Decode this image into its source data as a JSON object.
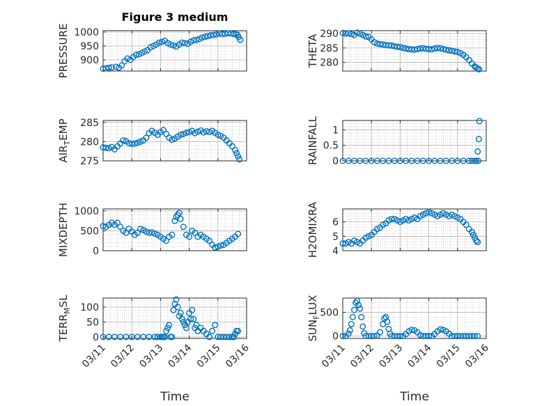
{
  "figure": {
    "title": "Figure 3 medium",
    "xlabel": "Time"
  },
  "colors": {
    "marker": "#0072BD",
    "axis": "#262626",
    "grid": "#b0b0b0"
  },
  "x_ticks": [
    "03/11",
    "03/12",
    "03/13",
    "03/14",
    "03/15",
    "03/16"
  ],
  "chart_data": [
    {
      "type": "scatter",
      "ylabel": "PRESSURE",
      "ylim": [
        860,
        1005
      ],
      "yticks": [
        900,
        950,
        1000
      ],
      "xlim": [
        0,
        5
      ],
      "grid": true,
      "x": [
        0,
        0.1,
        0.2,
        0.3,
        0.45,
        0.55,
        0.65,
        0.75,
        0.85,
        0.95,
        1.05,
        1.15,
        1.25,
        1.35,
        1.45,
        1.55,
        1.65,
        1.75,
        1.85,
        1.95,
        2.05,
        2.15,
        2.25,
        2.35,
        2.45,
        2.55,
        2.65,
        2.75,
        2.85,
        2.95,
        3.05,
        3.15,
        3.25,
        3.35,
        3.45,
        3.55,
        3.65,
        3.75,
        3.85,
        3.95,
        4.05,
        4.15,
        4.25,
        4.35,
        4.45,
        4.55,
        4.62,
        4.68,
        4.72,
        4.78
      ],
      "y": [
        868,
        870,
        872,
        873,
        875,
        872,
        880,
        895,
        905,
        900,
        910,
        918,
        920,
        925,
        930,
        935,
        945,
        950,
        955,
        962,
        965,
        968,
        960,
        955,
        952,
        948,
        955,
        962,
        960,
        958,
        965,
        970,
        972,
        975,
        980,
        983,
        985,
        988,
        990,
        992,
        995,
        993,
        994,
        996,
        995,
        993,
        992,
        990,
        982,
        972
      ]
    },
    {
      "type": "scatter",
      "ylabel": "THETA",
      "ylim": [
        277,
        291
      ],
      "yticks": [
        280,
        285,
        290
      ],
      "xlim": [
        0,
        5
      ],
      "grid": true,
      "x": [
        0,
        0.1,
        0.2,
        0.3,
        0.4,
        0.5,
        0.6,
        0.7,
        0.8,
        0.9,
        1.0,
        1.1,
        1.2,
        1.3,
        1.4,
        1.5,
        1.6,
        1.7,
        1.8,
        1.9,
        2.0,
        2.1,
        2.2,
        2.3,
        2.4,
        2.5,
        2.6,
        2.7,
        2.8,
        2.9,
        3.0,
        3.1,
        3.2,
        3.3,
        3.4,
        3.5,
        3.6,
        3.7,
        3.8,
        3.9,
        4.0,
        4.1,
        4.2,
        4.3,
        4.4,
        4.5,
        4.6,
        4.65,
        4.7,
        4.75
      ],
      "y": [
        290.2,
        290,
        290.1,
        289.8,
        289.5,
        290.3,
        290,
        289.5,
        289,
        288.8,
        288,
        287,
        286.5,
        286.3,
        286.2,
        286,
        285.9,
        285.8,
        285.6,
        285.4,
        285.3,
        285,
        284.8,
        284.6,
        284.5,
        284.4,
        284.6,
        284.8,
        284.9,
        284.7,
        284.6,
        284.5,
        284.8,
        285,
        284.9,
        284.6,
        284.4,
        284.2,
        284,
        283.8,
        283.6,
        283.2,
        282.6,
        281.8,
        280.8,
        279.6,
        278.6,
        278.2,
        277.8,
        277.6
      ]
    },
    {
      "type": "scatter",
      "ylabel": "AIR_TEMP",
      "ylim": [
        275,
        285.5
      ],
      "yticks": [
        275,
        280,
        285
      ],
      "xlim": [
        0,
        5
      ],
      "grid": true,
      "x": [
        0,
        0.1,
        0.2,
        0.3,
        0.4,
        0.5,
        0.6,
        0.7,
        0.8,
        0.9,
        1.0,
        1.1,
        1.2,
        1.3,
        1.4,
        1.5,
        1.6,
        1.7,
        1.8,
        1.9,
        2.0,
        2.1,
        2.2,
        2.3,
        2.4,
        2.5,
        2.6,
        2.7,
        2.8,
        2.9,
        3.0,
        3.1,
        3.2,
        3.3,
        3.4,
        3.5,
        3.6,
        3.7,
        3.8,
        3.9,
        4.0,
        4.1,
        4.2,
        4.3,
        4.4,
        4.5,
        4.6,
        4.65,
        4.7,
        4.75
      ],
      "y": [
        278.5,
        278.4,
        278.3,
        278.6,
        278,
        278.8,
        279.5,
        280.3,
        280.1,
        279.6,
        279.4,
        279.5,
        279.7,
        280,
        280.3,
        281,
        282.2,
        282.8,
        282.3,
        281.8,
        282.5,
        283,
        282,
        281,
        280.5,
        280.8,
        281.3,
        281.8,
        282,
        282.3,
        282.5,
        282.8,
        282.2,
        282.6,
        282.9,
        282.4,
        282.7,
        282.5,
        282.8,
        282.3,
        281.8,
        281.5,
        281,
        280.3,
        279.6,
        278.8,
        277.8,
        277,
        276.2,
        275.4
      ]
    },
    {
      "type": "scatter",
      "ylabel": "RAINFALL",
      "ylim": [
        0,
        1.3
      ],
      "yticks": [
        0,
        0.5,
        1
      ],
      "xlim": [
        0,
        5
      ],
      "grid": true,
      "x": [
        0,
        0.2,
        0.4,
        0.6,
        0.8,
        1.0,
        1.2,
        1.4,
        1.6,
        1.8,
        2.0,
        2.2,
        2.4,
        2.6,
        2.8,
        3.0,
        3.2,
        3.4,
        3.6,
        3.8,
        4.0,
        4.2,
        4.4,
        4.5,
        4.6,
        4.65,
        4.7,
        4.72,
        4.74,
        4.76
      ],
      "y": [
        0,
        0,
        0,
        0,
        0,
        0,
        0,
        0,
        0,
        0,
        0,
        0,
        0,
        0,
        0,
        0,
        0,
        0,
        0,
        0,
        0,
        0,
        0,
        0,
        0,
        0,
        0.3,
        0,
        0.7,
        1.28
      ]
    },
    {
      "type": "scatter",
      "ylabel": "MIXDEPTH",
      "ylim": [
        0,
        1050
      ],
      "yticks": [
        0,
        500,
        1000
      ],
      "xlim": [
        0,
        5
      ],
      "grid": true,
      "x": [
        0,
        0.1,
        0.2,
        0.3,
        0.4,
        0.5,
        0.6,
        0.7,
        0.8,
        0.9,
        1.0,
        1.1,
        1.2,
        1.3,
        1.4,
        1.5,
        1.6,
        1.7,
        1.8,
        1.9,
        2.0,
        2.1,
        2.2,
        2.3,
        2.4,
        2.5,
        2.55,
        2.6,
        2.65,
        2.7,
        2.8,
        2.9,
        3.0,
        3.1,
        3.2,
        3.3,
        3.4,
        3.5,
        3.6,
        3.7,
        3.8,
        3.9,
        4.0,
        4.1,
        4.2,
        4.3,
        4.4,
        4.5,
        4.6,
        4.7
      ],
      "y": [
        620,
        600,
        650,
        700,
        650,
        700,
        600,
        500,
        450,
        550,
        480,
        400,
        450,
        550,
        520,
        480,
        450,
        460,
        430,
        400,
        350,
        300,
        250,
        350,
        400,
        750,
        850,
        900,
        950,
        800,
        600,
        400,
        350,
        500,
        450,
        350,
        400,
        350,
        300,
        250,
        150,
        80,
        100,
        130,
        150,
        200,
        250,
        300,
        350,
        420
      ]
    },
    {
      "type": "scatter",
      "ylabel": "H2OMIXRA",
      "ylim": [
        4,
        6.9
      ],
      "yticks": [
        4,
        5,
        6
      ],
      "xlim": [
        0,
        5
      ],
      "grid": true,
      "x": [
        0,
        0.1,
        0.2,
        0.3,
        0.4,
        0.5,
        0.6,
        0.7,
        0.8,
        0.9,
        1.0,
        1.1,
        1.2,
        1.3,
        1.4,
        1.5,
        1.6,
        1.7,
        1.8,
        1.9,
        2.0,
        2.1,
        2.2,
        2.3,
        2.4,
        2.5,
        2.6,
        2.7,
        2.8,
        2.9,
        3.0,
        3.1,
        3.2,
        3.3,
        3.4,
        3.5,
        3.6,
        3.7,
        3.8,
        3.9,
        4.0,
        4.1,
        4.2,
        4.3,
        4.4,
        4.5,
        4.55,
        4.6,
        4.65,
        4.7
      ],
      "y": [
        4.5,
        4.5,
        4.6,
        4.5,
        4.7,
        4.6,
        4.5,
        4.7,
        4.9,
        5,
        5.1,
        5.3,
        5.5,
        5.6,
        5.8,
        5.9,
        6.1,
        6.2,
        6.2,
        6.1,
        6,
        6.1,
        6.2,
        6.1,
        6.2,
        6.3,
        6.2,
        6.4,
        6.5,
        6.6,
        6.7,
        6.6,
        6.5,
        6.4,
        6.5,
        6.6,
        6.5,
        6.4,
        6.5,
        6.4,
        6.3,
        6.2,
        6,
        5.8,
        5.5,
        5.3,
        5.1,
        4.9,
        4.7,
        4.6
      ]
    },
    {
      "type": "scatter",
      "ylabel": "TERR_MSL",
      "ylim": [
        -5,
        130
      ],
      "yticks": [
        0,
        50,
        100
      ],
      "xlim": [
        0,
        5
      ],
      "grid": true,
      "x": [
        0,
        0.2,
        0.4,
        0.6,
        0.8,
        1.0,
        1.2,
        1.4,
        1.6,
        1.8,
        1.9,
        2.0,
        2.05,
        2.1,
        2.15,
        2.2,
        2.25,
        2.3,
        2.35,
        2.4,
        2.45,
        2.5,
        2.55,
        2.6,
        2.65,
        2.7,
        2.75,
        2.8,
        2.85,
        2.9,
        2.95,
        3.0,
        3.05,
        3.1,
        3.15,
        3.2,
        3.25,
        3.3,
        3.4,
        3.5,
        3.6,
        3.7,
        3.8,
        3.9,
        4.0,
        4.1,
        4.2,
        4.3,
        4.4,
        4.5,
        4.55,
        4.6,
        4.65,
        4.7
      ],
      "y": [
        0,
        0,
        0,
        0,
        0,
        0,
        0,
        0,
        0,
        0,
        0,
        0,
        0,
        0,
        0,
        20,
        30,
        40,
        0,
        0,
        90,
        110,
        125,
        100,
        70,
        80,
        60,
        50,
        40,
        30,
        50,
        80,
        60,
        90,
        60,
        30,
        40,
        20,
        30,
        20,
        10,
        0,
        20,
        40,
        0,
        0,
        0,
        0,
        0,
        0,
        0,
        10,
        20,
        20
      ]
    },
    {
      "type": "scatter",
      "ylabel": "SUN_FLUX",
      "ylim": [
        -50,
        800
      ],
      "yticks": [
        0,
        500
      ],
      "xlim": [
        0,
        5
      ],
      "grid": true,
      "x": [
        0,
        0.1,
        0.2,
        0.25,
        0.3,
        0.35,
        0.4,
        0.45,
        0.5,
        0.55,
        0.6,
        0.65,
        0.7,
        0.75,
        0.8,
        0.9,
        1.0,
        1.1,
        1.2,
        1.3,
        1.4,
        1.45,
        1.5,
        1.55,
        1.6,
        1.65,
        1.7,
        1.8,
        1.9,
        2.0,
        2.1,
        2.2,
        2.3,
        2.4,
        2.5,
        2.6,
        2.7,
        2.8,
        2.9,
        3.0,
        3.1,
        3.2,
        3.3,
        3.4,
        3.5,
        3.6,
        3.7,
        3.8,
        3.9,
        4.0,
        4.1,
        4.2,
        4.3,
        4.4,
        4.5,
        4.6,
        4.7
      ],
      "y": [
        0,
        0,
        50,
        120,
        250,
        400,
        550,
        700,
        740,
        650,
        580,
        400,
        200,
        60,
        0,
        0,
        0,
        0,
        10,
        80,
        250,
        370,
        400,
        300,
        150,
        50,
        0,
        0,
        0,
        0,
        0,
        40,
        100,
        130,
        120,
        80,
        20,
        0,
        0,
        0,
        0,
        40,
        100,
        140,
        130,
        100,
        50,
        0,
        0,
        0,
        0,
        0,
        0,
        0,
        0,
        0,
        0
      ]
    }
  ],
  "ylabel_subs": {
    "AIR_TEMP": [
      "AIR",
      "T",
      "EMP"
    ],
    "TERR_MSL": [
      "TERR",
      "M",
      "SL"
    ],
    "SUN_FLUX": [
      "SUN",
      "F",
      "LUX"
    ]
  }
}
